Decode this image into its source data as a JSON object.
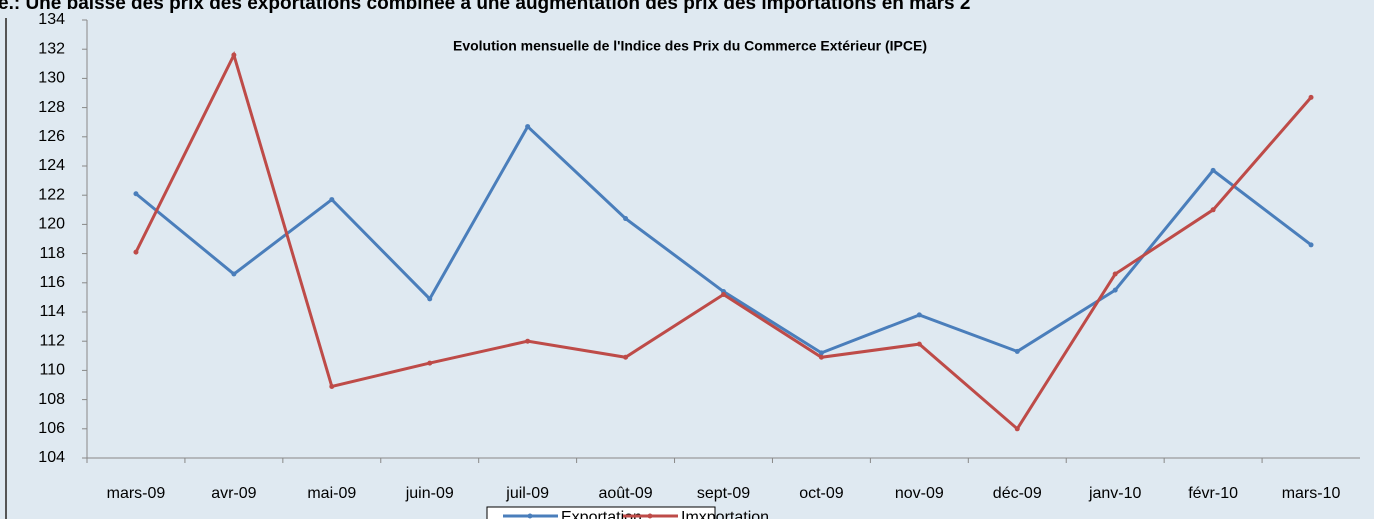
{
  "heading": "e.: Une baisse des prix des exportations combinée à une augmentation des prix des importations en mars 2",
  "chart_data": {
    "type": "line",
    "title": "Evolution mensuelle de l'Indice  des Prix du Commerce Extérieur (IPCE)",
    "categories": [
      "mars-09",
      "avr-09",
      "mai-09",
      "juin-09",
      "juil-09",
      "août-09",
      "sept-09",
      "oct-09",
      "nov-09",
      "déc-09",
      "janv-10",
      "févr-10",
      "mars-10"
    ],
    "series": [
      {
        "name": "Exportation",
        "color": "#4a7ebb",
        "values": [
          122.1,
          116.6,
          121.7,
          114.9,
          126.7,
          120.4,
          115.4,
          111.2,
          113.8,
          111.3,
          115.5,
          123.7,
          118.6
        ]
      },
      {
        "name": "Imxportation",
        "color": "#be4b48",
        "values": [
          118.1,
          131.6,
          108.9,
          110.5,
          112.0,
          110.9,
          115.2,
          110.9,
          111.8,
          106.0,
          116.6,
          121.0,
          128.7
        ]
      }
    ],
    "ylim": [
      104,
      134
    ],
    "yticks": [
      104,
      106,
      108,
      110,
      112,
      114,
      116,
      118,
      120,
      122,
      124,
      126,
      128,
      130,
      132,
      134
    ],
    "legend": "bottom"
  }
}
